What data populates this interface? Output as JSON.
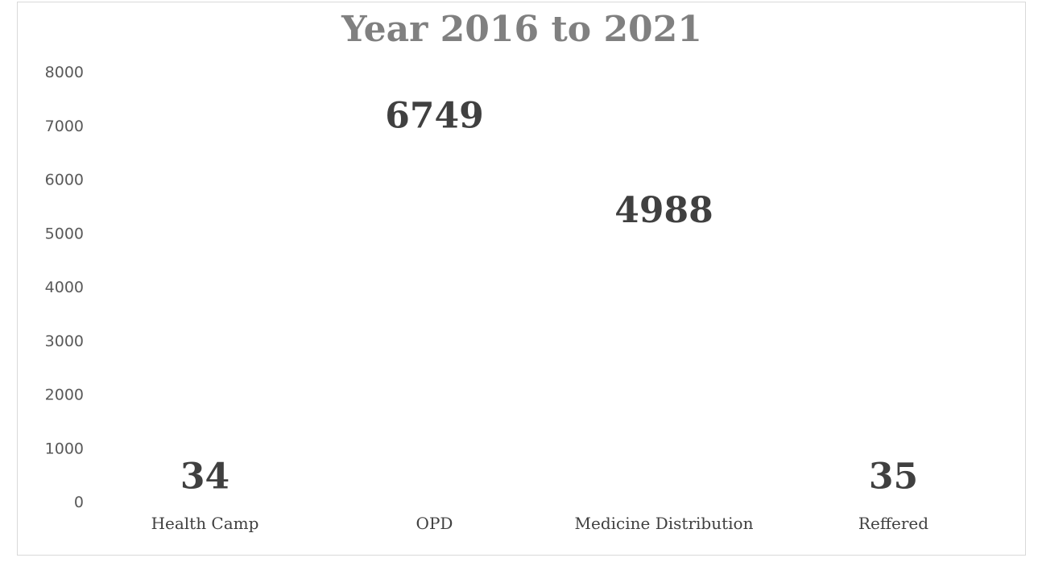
{
  "chart_data": {
    "type": "bar",
    "title": "Year 2016 to 2021",
    "xlabel": "",
    "ylabel": "",
    "categories": [
      "Health Camp",
      "OPD",
      "Medicine Distribution",
      "Reffered"
    ],
    "series": [
      {
        "values": [
          34,
          6749,
          4988,
          35
        ]
      }
    ],
    "data_labels": [
      "34",
      "6749",
      "4988",
      "35"
    ],
    "ylim": [
      0,
      8000
    ],
    "yticks": [
      0,
      1000,
      2000,
      3000,
      4000,
      5000,
      6000,
      7000,
      8000
    ],
    "ytick_labels": [
      "0",
      "1000",
      "2000",
      "3000",
      "4000",
      "5000",
      "6000",
      "7000",
      "8000"
    ],
    "grid": false,
    "legend": "none",
    "bars_visible": false,
    "colors": {
      "title": "#808080",
      "tick_label": "#595959",
      "category_label": "#404040",
      "data_label": "#404040",
      "frame_border": "#d9d9d9"
    }
  }
}
